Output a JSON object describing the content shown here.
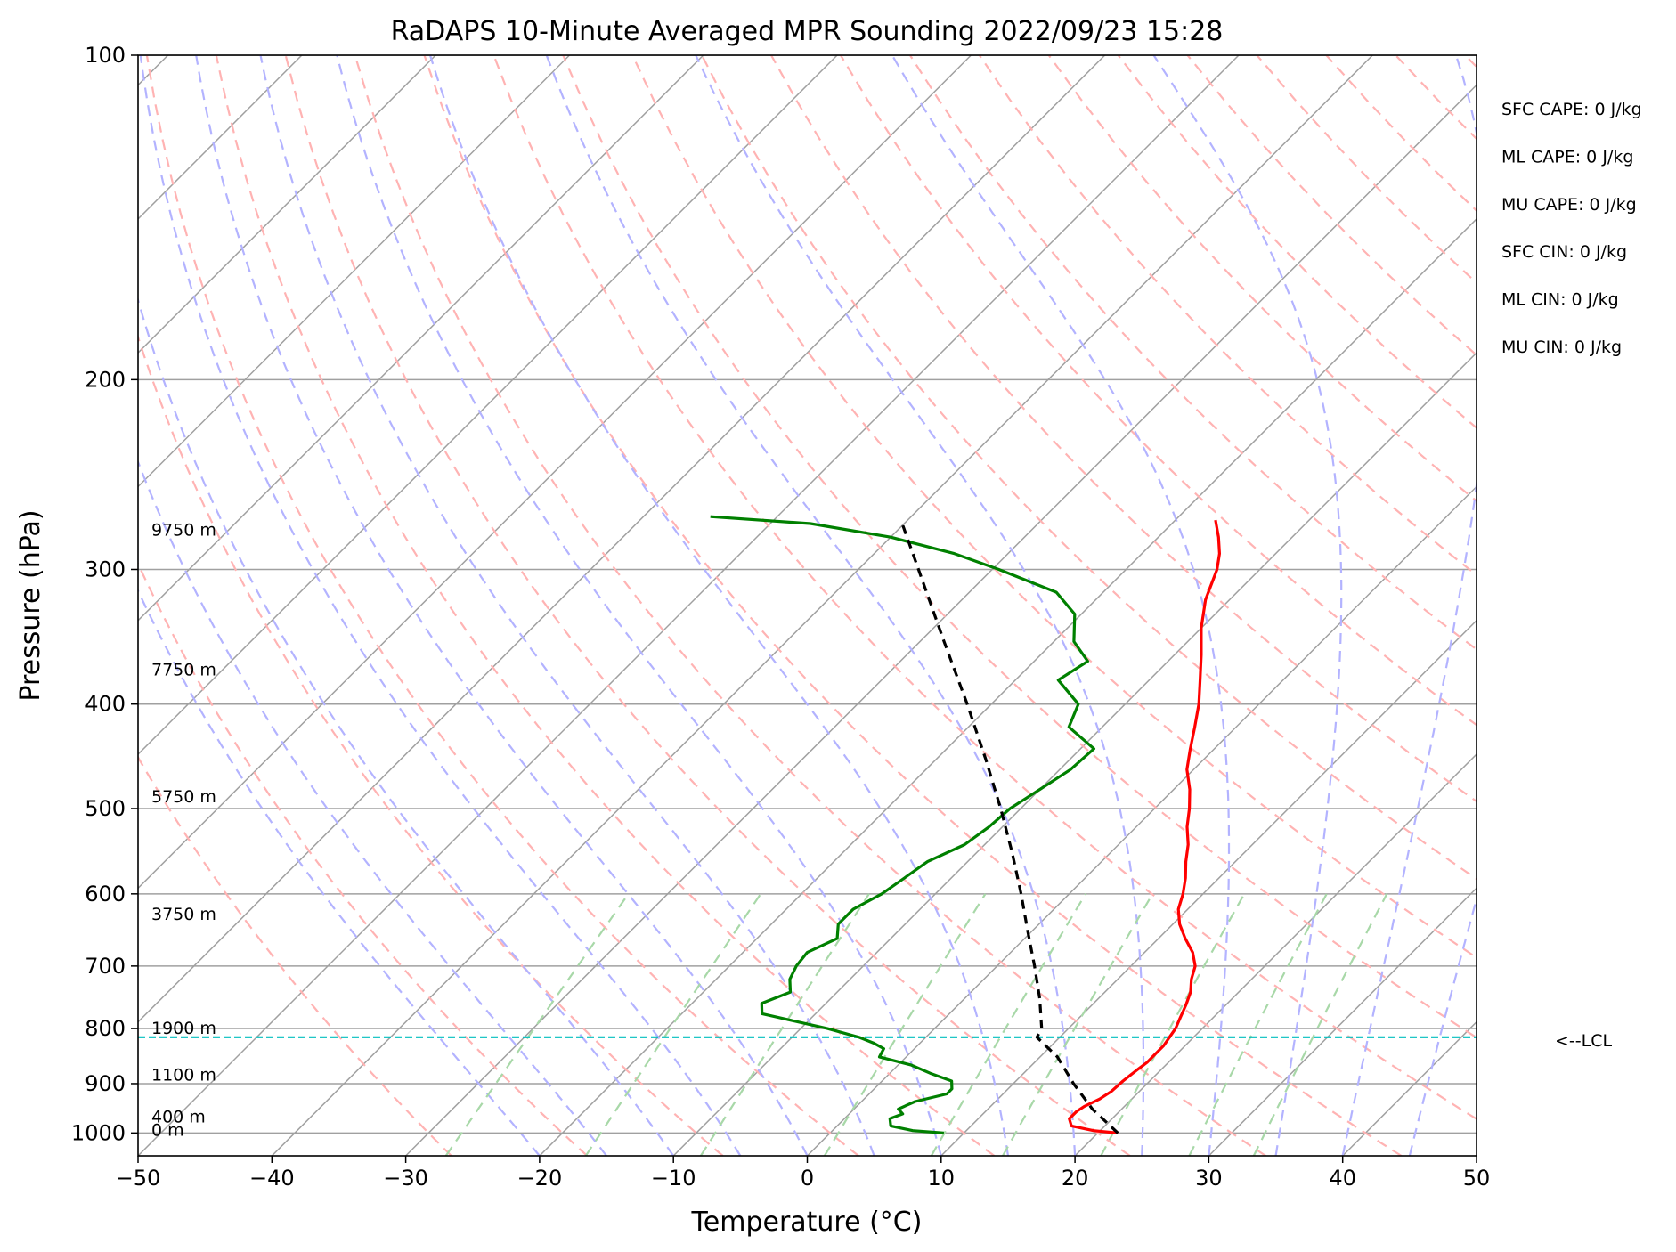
{
  "chart_data": {
    "type": "line",
    "title": "RaDAPS 10-Minute Averaged MPR Sounding 2022/09/23 15:28",
    "xlabel": "Temperature (°C)",
    "ylabel": "Pressure (hPa)",
    "xlim": [
      -50,
      50
    ],
    "ylim": [
      1050,
      100
    ],
    "y_scale": "log",
    "x_ticks": [
      -50,
      -40,
      -30,
      -20,
      -10,
      0,
      10,
      20,
      30,
      40,
      50
    ],
    "x_tick_labels": [
      "−50",
      "−40",
      "−30",
      "−20",
      "−10",
      "0",
      "10",
      "20",
      "30",
      "40",
      "50"
    ],
    "y_ticks": [
      100,
      200,
      300,
      400,
      500,
      600,
      700,
      800,
      900,
      1000
    ],
    "y_tick_labels": [
      "100",
      "200",
      "300",
      "400",
      "500",
      "600",
      "700",
      "800",
      "900",
      "1000"
    ],
    "grid": true,
    "colors": {
      "temperature": "#ff0000",
      "dewpoint": "#008000",
      "parcel": "#000000",
      "lcl": "#00bfbf",
      "isotherm": "#a0a0a0",
      "dry_adiabat": "#ffb3b3",
      "moist_adiabat": "#b3b3ff",
      "mixing_ratio": "#a8d8a8"
    },
    "series": [
      {
        "key": "temperature",
        "points": [
          [
            1000,
            21.5
          ],
          [
            995,
            19.5
          ],
          [
            985,
            17.5
          ],
          [
            970,
            16.8
          ],
          [
            955,
            16.8
          ],
          [
            945,
            17.0
          ],
          [
            930,
            17.6
          ],
          [
            915,
            17.9
          ],
          [
            895,
            18.0
          ],
          [
            875,
            18.2
          ],
          [
            860,
            18.4
          ],
          [
            845,
            18.4
          ],
          [
            830,
            18.4
          ],
          [
            815,
            18.2
          ],
          [
            800,
            18.0
          ],
          [
            780,
            17.5
          ],
          [
            760,
            17.0
          ],
          [
            740,
            16.4
          ],
          [
            720,
            15.5
          ],
          [
            700,
            14.8
          ],
          [
            680,
            13.6
          ],
          [
            660,
            12.0
          ],
          [
            640,
            10.5
          ],
          [
            620,
            9.3
          ],
          [
            600,
            8.5
          ],
          [
            580,
            7.5
          ],
          [
            560,
            6.3
          ],
          [
            540,
            5.2
          ],
          [
            520,
            3.8
          ],
          [
            500,
            2.6
          ],
          [
            480,
            1.2
          ],
          [
            460,
            -0.5
          ],
          [
            440,
            -1.8
          ],
          [
            420,
            -3.1
          ],
          [
            400,
            -4.5
          ],
          [
            380,
            -6.2
          ],
          [
            360,
            -8.0
          ],
          [
            340,
            -10.0
          ],
          [
            320,
            -11.8
          ],
          [
            300,
            -13.2
          ],
          [
            290,
            -14.2
          ],
          [
            280,
            -15.5
          ],
          [
            270,
            -17.0
          ]
        ]
      },
      {
        "key": "dewpoint",
        "points": [
          [
            1000,
            8.5
          ],
          [
            995,
            6.0
          ],
          [
            985,
            4.0
          ],
          [
            970,
            3.4
          ],
          [
            960,
            4.0
          ],
          [
            950,
            3.3
          ],
          [
            935,
            4.0
          ],
          [
            920,
            5.8
          ],
          [
            910,
            5.8
          ],
          [
            895,
            5.2
          ],
          [
            880,
            3.0
          ],
          [
            865,
            1.0
          ],
          [
            850,
            -2.0
          ],
          [
            835,
            -2.3
          ],
          [
            825,
            -3.5
          ],
          [
            815,
            -5.0
          ],
          [
            800,
            -8.0
          ],
          [
            775,
            -14.0
          ],
          [
            758,
            -14.8
          ],
          [
            740,
            -13.5
          ],
          [
            720,
            -14.5
          ],
          [
            700,
            -15.0
          ],
          [
            680,
            -15.2
          ],
          [
            660,
            -14.0
          ],
          [
            640,
            -15.0
          ],
          [
            620,
            -15.0
          ],
          [
            600,
            -14.0
          ],
          [
            580,
            -13.5
          ],
          [
            560,
            -13.0
          ],
          [
            540,
            -11.5
          ],
          [
            520,
            -11.0
          ],
          [
            500,
            -10.8
          ],
          [
            480,
            -10.0
          ],
          [
            460,
            -9.2
          ],
          [
            440,
            -9.0
          ],
          [
            420,
            -12.5
          ],
          [
            400,
            -13.5
          ],
          [
            380,
            -16.8
          ],
          [
            365,
            -16.0
          ],
          [
            350,
            -18.5
          ],
          [
            330,
            -20.5
          ],
          [
            315,
            -23.5
          ],
          [
            300,
            -29.5
          ],
          [
            290,
            -34.0
          ],
          [
            280,
            -40.0
          ],
          [
            272,
            -47.0
          ],
          [
            268,
            -55.0
          ]
        ]
      },
      {
        "key": "parcel",
        "points": [
          [
            1000,
            21.5
          ],
          [
            950,
            17.8
          ],
          [
            900,
            14.5
          ],
          [
            850,
            11.3
          ],
          [
            815,
            8.3
          ],
          [
            800,
            8.0
          ],
          [
            750,
            5.6
          ],
          [
            700,
            2.8
          ],
          [
            650,
            -0.3
          ],
          [
            600,
            -3.6
          ],
          [
            550,
            -7.3
          ],
          [
            500,
            -11.5
          ],
          [
            450,
            -16.3
          ],
          [
            400,
            -21.8
          ],
          [
            350,
            -28.2
          ],
          [
            300,
            -35.5
          ],
          [
            270,
            -40.5
          ]
        ]
      }
    ],
    "lcl": {
      "pressure": 815,
      "label": "<--LCL"
    },
    "height_labels": [
      {
        "text": "9750 m",
        "pressure": 276
      },
      {
        "text": "7750 m",
        "pressure": 372
      },
      {
        "text": "5750 m",
        "pressure": 488
      },
      {
        "text": "3750 m",
        "pressure": 627
      },
      {
        "text": "1900 m",
        "pressure": 800
      },
      {
        "text": "1100 m",
        "pressure": 884
      },
      {
        "text": "400 m",
        "pressure": 967
      },
      {
        "text": "0 m",
        "pressure": 995
      }
    ],
    "annotations": [
      "SFC CAPE: 0 J/kg",
      "ML CAPE: 0 J/kg",
      "MU CAPE: 0 J/kg",
      "SFC CIN: 0 J/kg",
      "ML CIN: 0 J/kg",
      "MU CIN: 0 J/kg"
    ]
  }
}
